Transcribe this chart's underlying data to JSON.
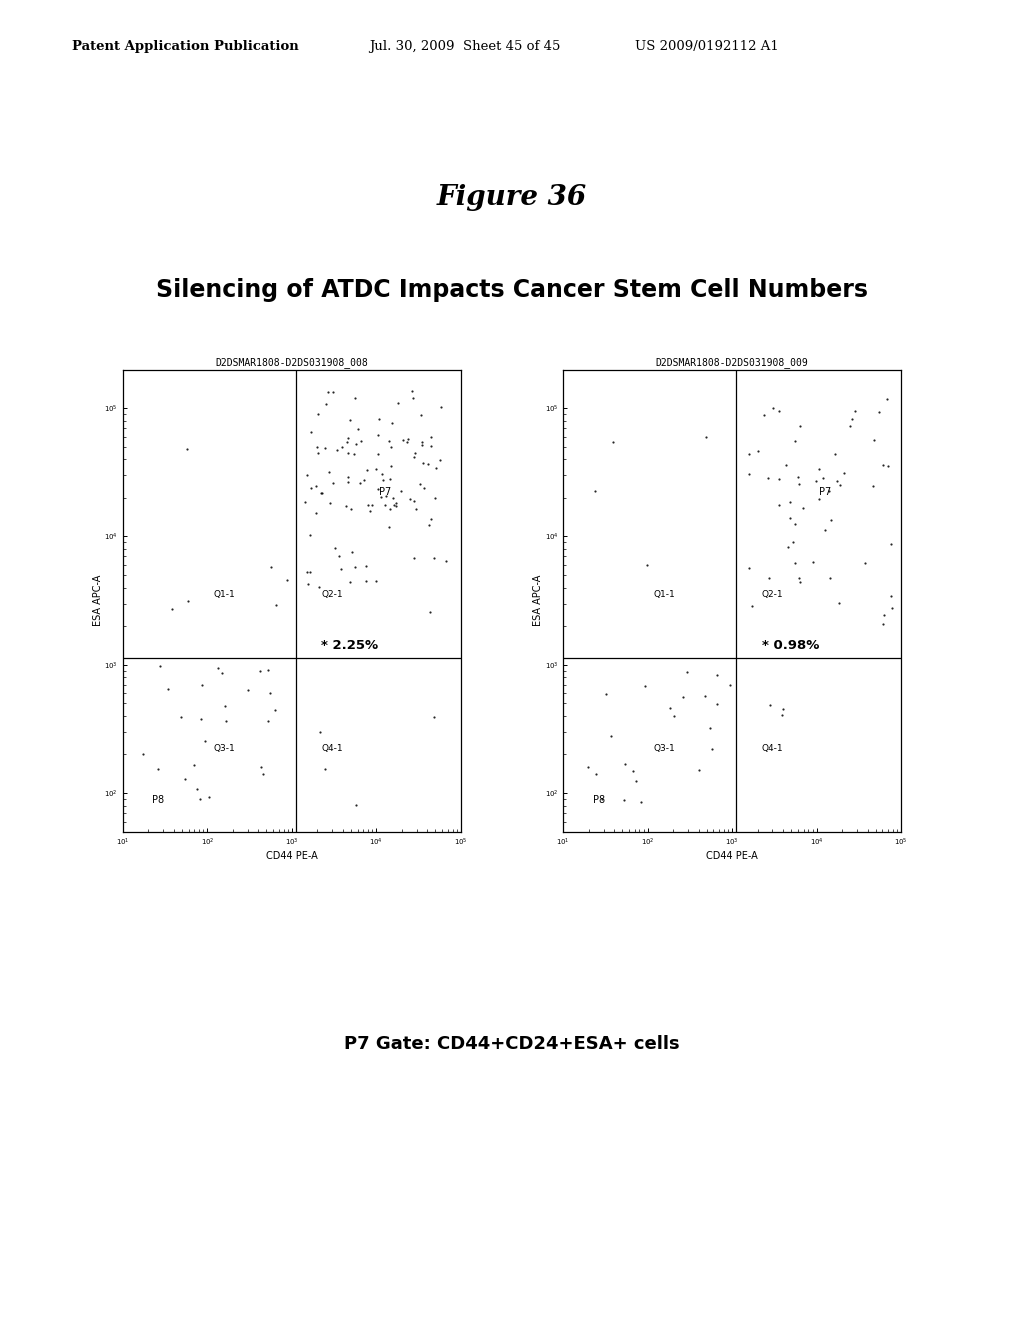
{
  "header_left": "Patent Application Publication",
  "header_mid": "Jul. 30, 2009  Sheet 45 of 45",
  "header_right": "US 2009/0192112 A1",
  "figure_title": "Figure 36",
  "subtitle": "Silencing of ATDC Impacts Cancer Stem Cell Numbers",
  "footer": "P7 Gate: CD44+CD24+ESA+ cells",
  "plot1_title": "D2DSMAR1808-D2DS031908_008",
  "plot2_title": "D2DSMAR1808-D2DS031908_009",
  "plot1_percent": "2.25%",
  "plot2_percent": "0.98%",
  "xlabel": "CD44 PE-A",
  "ylabel": "ESA APC-A",
  "bg_color": "#ffffff",
  "plot_bg": "#ffffff",
  "border_color": "#000000",
  "text_color": "#000000",
  "xdiv_log": 3.05,
  "ydiv_log": 3.05,
  "xlim": [
    1,
    5
  ],
  "ylim": [
    1.7,
    5.3
  ]
}
